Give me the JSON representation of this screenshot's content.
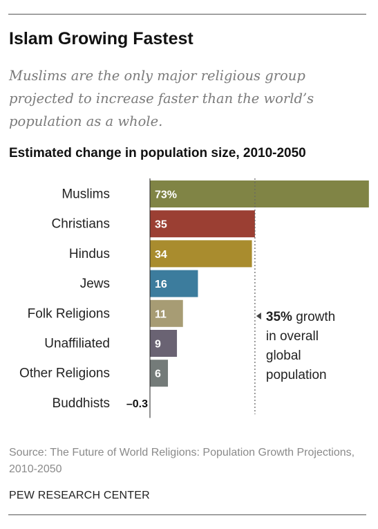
{
  "header": {
    "title": "Islam Growing Fastest",
    "subtitle": "Muslims are the only major religious group projected to increase faster than the world’s population as a whole."
  },
  "chart_heading": "Estimated change in population size, 2010-2050",
  "chart_data": {
    "type": "bar",
    "orientation": "horizontal",
    "title": "Estimated change in population size, 2010-2050",
    "categories": [
      "Muslims",
      "Christians",
      "Hindus",
      "Jews",
      "Folk Religions",
      "Unaffiliated",
      "Other Religions",
      "Buddhists"
    ],
    "values": [
      73,
      35,
      34,
      16,
      11,
      9,
      6,
      -0.3
    ],
    "value_labels": [
      "73%",
      "35",
      "34",
      "16",
      "11",
      "9",
      "6",
      "–0.3"
    ],
    "colors": [
      "#808445",
      "#9b3f33",
      "#a98c2e",
      "#3c7c9d",
      "#a79c74",
      "#6a6373",
      "#747b79",
      "#333333"
    ],
    "reference_line": {
      "value": 35,
      "label_value": "35%",
      "label_rest": [
        " growth",
        "in overall",
        "global",
        "population"
      ]
    },
    "xlim": [
      0,
      73
    ],
    "grid": false,
    "legend": "none"
  },
  "footer": {
    "source": "Source: The Future of World Religions: Population Growth Projections, 2010-2050",
    "brand": "PEW RESEARCH CENTER"
  }
}
